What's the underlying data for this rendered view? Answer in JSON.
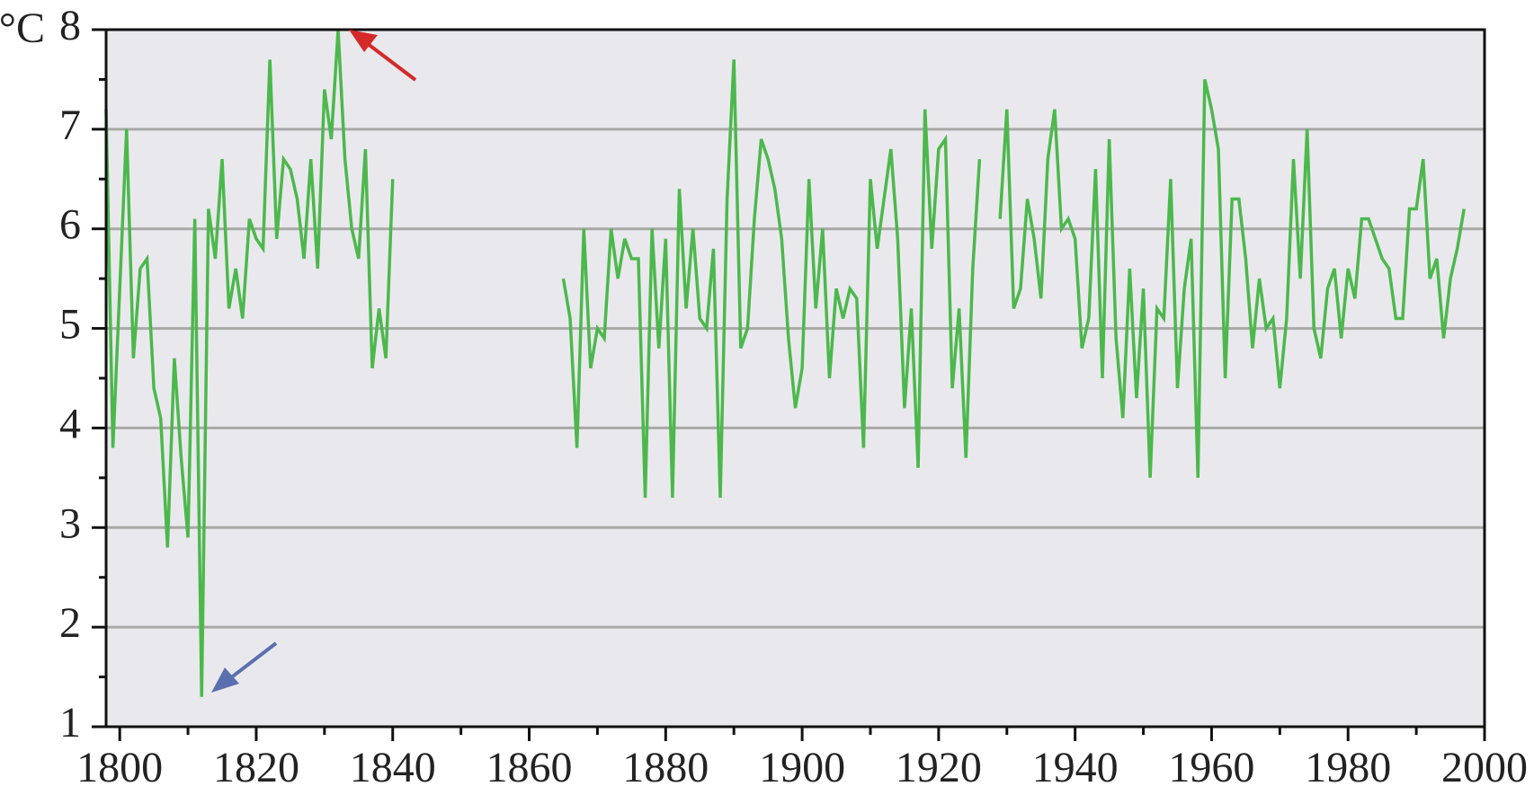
{
  "chart_data": {
    "type": "line",
    "y_label": "°C",
    "x": [
      1798,
      1799,
      1800,
      1801,
      1802,
      1803,
      1804,
      1805,
      1806,
      1807,
      1808,
      1809,
      1810,
      1811,
      1812,
      1813,
      1814,
      1815,
      1816,
      1817,
      1818,
      1819,
      1820,
      1821,
      1822,
      1823,
      1824,
      1825,
      1826,
      1827,
      1828,
      1829,
      1830,
      1831,
      1832,
      1833,
      1834,
      1835,
      1836,
      1837,
      1838,
      1839,
      1840,
      1841,
      1842,
      1843,
      1844,
      1845,
      1846,
      1847,
      1848,
      1849,
      1850,
      1851,
      1852,
      1853,
      1854,
      1855,
      1856,
      1857,
      1858,
      1859,
      1860,
      1861,
      1862,
      1863,
      1864,
      1865,
      1866,
      1867,
      1868,
      1869,
      1870,
      1871,
      1872,
      1873,
      1874,
      1875,
      1876,
      1877,
      1878,
      1879,
      1880,
      1881,
      1882,
      1883,
      1884,
      1885,
      1886,
      1887,
      1888,
      1889,
      1890,
      1891,
      1892,
      1893,
      1894,
      1895,
      1896,
      1897,
      1898,
      1899,
      1900,
      1901,
      1902,
      1903,
      1904,
      1905,
      1906,
      1907,
      1908,
      1909,
      1910,
      1911,
      1912,
      1913,
      1914,
      1915,
      1916,
      1917,
      1918,
      1919,
      1920,
      1921,
      1922,
      1923,
      1924,
      1925,
      1926,
      1927,
      1928,
      1929,
      1930,
      1931,
      1932,
      1933,
      1934,
      1935,
      1936,
      1937,
      1938,
      1939,
      1940,
      1941,
      1942,
      1943,
      1944,
      1945,
      1946,
      1947,
      1948,
      1949,
      1950,
      1951,
      1952,
      1953,
      1954,
      1955,
      1956,
      1957,
      1958,
      1959,
      1960,
      1961,
      1962,
      1963,
      1964,
      1965,
      1966,
      1967,
      1968,
      1969,
      1970,
      1971,
      1972,
      1973,
      1974,
      1975,
      1976,
      1977,
      1978,
      1979,
      1980,
      1981,
      1982,
      1983,
      1984,
      1985,
      1986,
      1987,
      1988,
      1989,
      1990,
      1991,
      1992,
      1993,
      1994,
      1995,
      1996,
      1997
    ],
    "series": [
      {
        "color": "#4cb84c",
        "values": [
          7.2,
          3.8,
          5.4,
          7.0,
          4.7,
          5.6,
          5.7,
          4.4,
          4.1,
          2.8,
          4.7,
          3.7,
          2.9,
          6.1,
          1.3,
          6.2,
          5.7,
          6.7,
          5.2,
          5.6,
          5.1,
          6.1,
          5.9,
          5.8,
          7.7,
          5.9,
          6.7,
          6.6,
          6.3,
          5.7,
          6.7,
          5.6,
          7.4,
          6.9,
          8.0,
          6.7,
          6.0,
          5.7,
          6.8,
          4.6,
          5.2,
          4.7,
          6.5,
          null,
          null,
          null,
          null,
          null,
          null,
          null,
          null,
          null,
          null,
          null,
          null,
          null,
          null,
          null,
          null,
          null,
          null,
          null,
          null,
          null,
          null,
          null,
          null,
          5.5,
          5.1,
          3.8,
          6.0,
          4.6,
          5.0,
          4.9,
          6.0,
          5.5,
          5.9,
          5.7,
          5.7,
          3.3,
          6.0,
          4.8,
          5.9,
          3.3,
          6.4,
          5.2,
          6.0,
          5.1,
          5.0,
          5.8,
          3.3,
          6.3,
          7.7,
          4.8,
          5.0,
          6.1,
          6.9,
          6.7,
          6.4,
          5.9,
          4.9,
          4.2,
          4.6,
          6.5,
          5.2,
          6.0,
          4.5,
          5.4,
          5.1,
          5.4,
          5.3,
          3.8,
          6.5,
          5.8,
          6.3,
          6.8,
          5.9,
          4.2,
          5.2,
          3.6,
          7.2,
          5.8,
          6.8,
          6.9,
          4.4,
          5.2,
          3.7,
          5.6,
          6.7,
          null,
          null,
          6.1,
          7.2,
          5.2,
          5.4,
          6.3,
          5.9,
          5.3,
          6.7,
          7.2,
          6.0,
          6.1,
          5.9,
          4.8,
          5.1,
          6.6,
          4.5,
          6.9,
          4.9,
          4.1,
          5.6,
          4.3,
          5.4,
          3.5,
          5.2,
          5.1,
          6.5,
          4.4,
          5.4,
          5.9,
          3.5,
          7.5,
          7.2,
          6.8,
          4.5,
          6.3,
          6.3,
          5.7,
          4.8,
          5.5,
          5.0,
          5.1,
          4.4,
          5.1,
          6.7,
          5.5,
          7.0,
          5.0,
          4.7,
          5.4,
          5.6,
          4.9,
          5.6,
          5.3,
          6.1,
          6.1,
          5.9,
          5.7,
          5.6,
          5.1,
          5.1,
          6.2,
          6.2,
          6.7,
          5.5,
          5.7,
          4.9,
          5.5,
          5.8,
          6.2
        ]
      }
    ],
    "xlim": [
      1798,
      2000
    ],
    "xticks": [
      1800,
      1820,
      1840,
      1860,
      1880,
      1900,
      1920,
      1940,
      1960,
      1980,
      2000
    ],
    "xminorticks": [
      1810,
      1830,
      1850,
      1870,
      1890,
      1910,
      1930,
      1950,
      1970,
      1990
    ],
    "ylim": [
      1,
      8
    ],
    "yticks": [
      1,
      2,
      3,
      4,
      5,
      6,
      7,
      8
    ],
    "yminorticks": [
      1.5,
      2.5,
      3.5,
      4.5,
      5.5,
      6.5,
      7.5
    ],
    "grid": true
  }
}
